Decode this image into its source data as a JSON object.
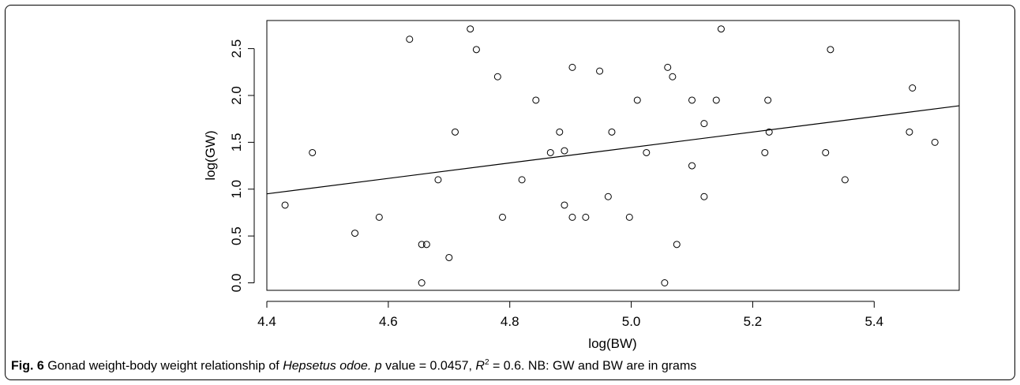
{
  "chart_data": {
    "type": "scatter",
    "xlabel": "log(BW)",
    "ylabel": "log(GW)",
    "xlim": [
      4.4,
      5.54
    ],
    "ylim": [
      -0.08,
      2.8
    ],
    "x_ticks": [
      "4.4",
      "4.6",
      "4.8",
      "5.0",
      "5.2",
      "5.4"
    ],
    "y_ticks": [
      "0.0",
      "0.5",
      "1.0",
      "1.5",
      "2.0",
      "2.5"
    ],
    "points": [
      {
        "x": 4.43,
        "y": 0.83
      },
      {
        "x": 4.475,
        "y": 1.39
      },
      {
        "x": 4.545,
        "y": 0.53
      },
      {
        "x": 4.585,
        "y": 0.7
      },
      {
        "x": 4.635,
        "y": 2.6
      },
      {
        "x": 4.655,
        "y": 0.41
      },
      {
        "x": 4.655,
        "y": 0.0
      },
      {
        "x": 4.663,
        "y": 0.41
      },
      {
        "x": 4.682,
        "y": 1.1
      },
      {
        "x": 4.7,
        "y": 0.27
      },
      {
        "x": 4.71,
        "y": 1.61
      },
      {
        "x": 4.735,
        "y": 2.71
      },
      {
        "x": 4.745,
        "y": 2.49
      },
      {
        "x": 4.78,
        "y": 2.2
      },
      {
        "x": 4.788,
        "y": 0.7
      },
      {
        "x": 4.82,
        "y": 1.1
      },
      {
        "x": 4.843,
        "y": 1.95
      },
      {
        "x": 4.867,
        "y": 1.39
      },
      {
        "x": 4.882,
        "y": 1.61
      },
      {
        "x": 4.89,
        "y": 1.41
      },
      {
        "x": 4.89,
        "y": 0.83
      },
      {
        "x": 4.903,
        "y": 2.3
      },
      {
        "x": 4.903,
        "y": 0.7
      },
      {
        "x": 4.925,
        "y": 0.7
      },
      {
        "x": 4.948,
        "y": 2.26
      },
      {
        "x": 4.962,
        "y": 0.92
      },
      {
        "x": 4.968,
        "y": 1.61
      },
      {
        "x": 4.997,
        "y": 0.7
      },
      {
        "x": 5.01,
        "y": 1.95
      },
      {
        "x": 5.025,
        "y": 1.39
      },
      {
        "x": 5.055,
        "y": 0.0
      },
      {
        "x": 5.06,
        "y": 2.3
      },
      {
        "x": 5.068,
        "y": 2.2
      },
      {
        "x": 5.075,
        "y": 0.41
      },
      {
        "x": 5.1,
        "y": 1.95
      },
      {
        "x": 5.1,
        "y": 1.25
      },
      {
        "x": 5.12,
        "y": 1.7
      },
      {
        "x": 5.12,
        "y": 0.92
      },
      {
        "x": 5.14,
        "y": 1.95
      },
      {
        "x": 5.148,
        "y": 2.71
      },
      {
        "x": 5.22,
        "y": 1.39
      },
      {
        "x": 5.225,
        "y": 1.95
      },
      {
        "x": 5.227,
        "y": 1.61
      },
      {
        "x": 5.32,
        "y": 1.39
      },
      {
        "x": 5.328,
        "y": 2.49
      },
      {
        "x": 5.352,
        "y": 1.1
      },
      {
        "x": 5.458,
        "y": 1.61
      },
      {
        "x": 5.463,
        "y": 2.08
      },
      {
        "x": 5.5,
        "y": 1.5
      }
    ],
    "fit_line": {
      "x": [
        4.4,
        5.54
      ],
      "y": [
        0.95,
        1.89
      ]
    },
    "grid": false,
    "legend": "none"
  },
  "caption": {
    "label": "Fig. 6",
    "text1": " Gonad weight-body weight relationship of ",
    "species": "Hepsetus odoe.",
    "text2": " ",
    "p": "p",
    "text3": " value = 0.0457, ",
    "r": "R",
    "sup": "2",
    "text4": " = 0.6. NB: GW and BW are in grams"
  }
}
